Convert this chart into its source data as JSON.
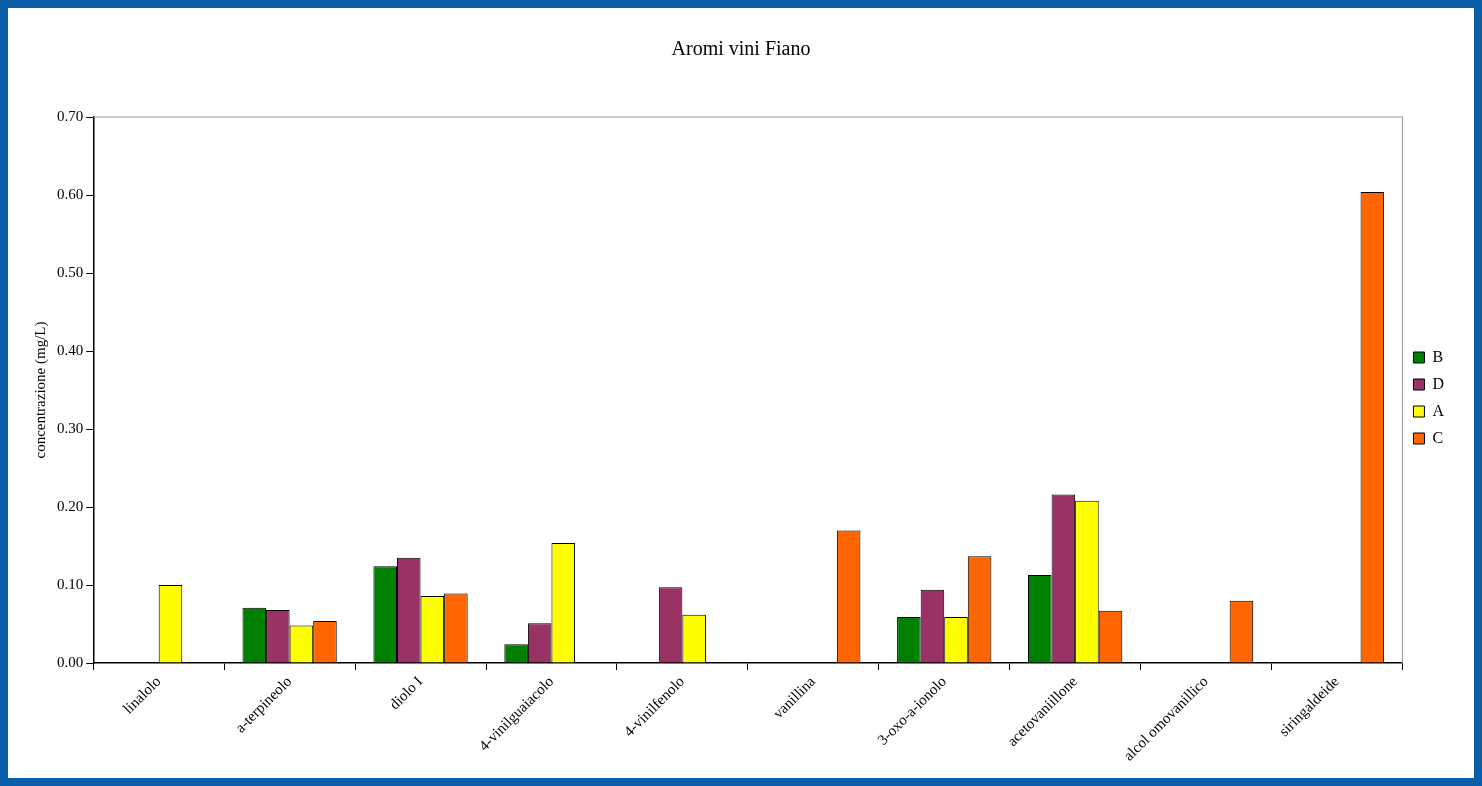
{
  "chart_data": {
    "type": "bar",
    "title": "Aromi vini Fiano",
    "ylabel": "concentrazione (mg/L)",
    "categories": [
      "linalolo",
      "a-terpineolo",
      "diolo I",
      "4-vinilguaiacolo",
      "4-vinilfenolo",
      "vanillina",
      "3-oxo-a-ionolo",
      "acetovaniillone",
      "alcol omovanillico",
      "siringaldeide"
    ],
    "series": [
      {
        "name": "B",
        "color": "#008000",
        "values": [
          null,
          0.071,
          0.124,
          0.024,
          null,
          null,
          0.059,
          0.113,
          null,
          null
        ]
      },
      {
        "name": "D",
        "color": "#993366",
        "values": [
          null,
          0.068,
          0.135,
          0.051,
          0.097,
          null,
          0.094,
          0.216,
          null,
          null
        ]
      },
      {
        "name": "A",
        "color": "#ffff00",
        "values": [
          0.1,
          0.048,
          0.086,
          0.154,
          0.062,
          null,
          0.059,
          0.208,
          null,
          null
        ]
      },
      {
        "name": "C",
        "color": "#ff6600",
        "values": [
          null,
          0.054,
          0.089,
          null,
          null,
          0.17,
          0.137,
          0.067,
          0.08,
          0.604
        ]
      }
    ],
    "ylim": [
      0,
      0.7
    ],
    "yticks": [
      {
        "value": 0,
        "label": "0.00"
      },
      {
        "value": 0.1,
        "label": "0.10"
      },
      {
        "value": 0.2,
        "label": "0.20"
      },
      {
        "value": 0.3,
        "label": "0.30"
      },
      {
        "value": 0.4,
        "label": "0.40"
      },
      {
        "value": 0.5,
        "label": "0.50"
      },
      {
        "value": 0.6,
        "label": "0.60"
      },
      {
        "value": 0.7,
        "label": "0.70"
      }
    ],
    "grid": false,
    "legend": "right"
  }
}
